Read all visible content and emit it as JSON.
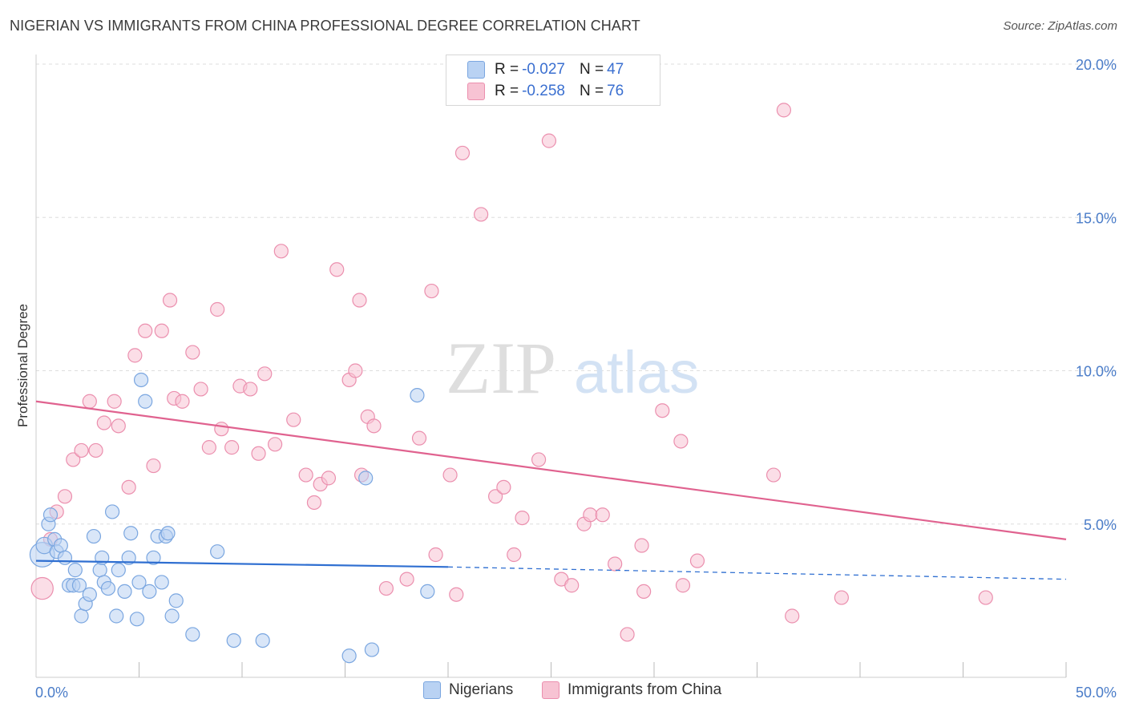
{
  "header": {
    "title": "NIGERIAN VS IMMIGRANTS FROM CHINA PROFESSIONAL DEGREE CORRELATION CHART",
    "source": "Source: ZipAtlas.com"
  },
  "legend": {
    "rows": [
      {
        "r_label": "R = ",
        "r_value": "-0.027",
        "n_label": "N = ",
        "n_value": "47"
      },
      {
        "r_label": "R = ",
        "r_value": "-0.258",
        "n_label": "N = ",
        "n_value": "76"
      }
    ],
    "bottom": [
      "Nigerians",
      "Immigrants from China"
    ]
  },
  "watermark": {
    "zip": "ZIP",
    "atlas": "atlas"
  },
  "colors": {
    "nigerians_fill": "#b9d2f3",
    "nigerians_stroke": "#7aa6e0",
    "nigerians_line": "#2f6fd1",
    "china_fill": "#f7c3d3",
    "china_stroke": "#eb8fae",
    "china_line": "#e0628f",
    "tick": "#4a7cc8",
    "grid": "#dddddd"
  },
  "chart_data": {
    "type": "scatter",
    "title": "NIGERIAN VS IMMIGRANTS FROM CHINA PROFESSIONAL DEGREE CORRELATION CHART",
    "xlabel": "",
    "ylabel": "Professional Degree",
    "xlim": [
      0,
      50
    ],
    "ylim": [
      0,
      20
    ],
    "x_ticks": [
      "0.0%",
      "50.0%"
    ],
    "y_ticks": [
      {
        "value": 5,
        "label": "5.0%"
      },
      {
        "value": 10,
        "label": "10.0%"
      },
      {
        "value": 15,
        "label": "15.0%"
      },
      {
        "value": 20,
        "label": "20.0%"
      }
    ],
    "grid": true,
    "legend_position": "top-center",
    "series": [
      {
        "name": "Nigerians",
        "R": -0.027,
        "N": 47,
        "trend": {
          "x": [
            0,
            20
          ],
          "y": [
            3.8,
            3.6
          ],
          "dashed_to": [
            50,
            3.2
          ]
        },
        "points": [
          [
            0.3,
            4.0,
            18
          ],
          [
            0.4,
            4.3,
            12
          ],
          [
            0.6,
            5.0,
            10
          ],
          [
            0.7,
            5.3,
            10
          ],
          [
            0.9,
            4.5,
            10
          ],
          [
            1.0,
            4.1,
            10
          ],
          [
            1.2,
            4.3,
            10
          ],
          [
            1.4,
            3.9,
            10
          ],
          [
            1.6,
            3.0,
            10
          ],
          [
            1.8,
            3.0,
            10
          ],
          [
            1.9,
            3.5,
            10
          ],
          [
            2.1,
            3.0,
            10
          ],
          [
            2.2,
            2.0,
            10
          ],
          [
            2.4,
            2.4,
            10
          ],
          [
            2.6,
            2.7,
            10
          ],
          [
            2.8,
            4.6,
            10
          ],
          [
            3.1,
            3.5,
            10
          ],
          [
            3.2,
            3.9,
            10
          ],
          [
            3.3,
            3.1,
            10
          ],
          [
            3.5,
            2.9,
            10
          ],
          [
            3.7,
            5.4,
            10
          ],
          [
            3.9,
            2.0,
            10
          ],
          [
            4.0,
            3.5,
            10
          ],
          [
            4.3,
            2.8,
            10
          ],
          [
            4.5,
            3.9,
            10
          ],
          [
            4.6,
            4.7,
            10
          ],
          [
            4.9,
            1.9,
            10
          ],
          [
            5.0,
            3.1,
            10
          ],
          [
            5.1,
            9.7,
            10
          ],
          [
            5.3,
            9.0,
            10
          ],
          [
            5.5,
            2.8,
            10
          ],
          [
            5.7,
            3.9,
            10
          ],
          [
            5.9,
            4.6,
            10
          ],
          [
            6.1,
            3.1,
            10
          ],
          [
            6.3,
            4.6,
            10
          ],
          [
            6.4,
            4.7,
            10
          ],
          [
            6.6,
            2.0,
            10
          ],
          [
            6.8,
            2.5,
            10
          ],
          [
            7.6,
            1.4,
            10
          ],
          [
            8.8,
            4.1,
            10
          ],
          [
            9.6,
            1.2,
            10
          ],
          [
            11.0,
            1.2,
            10
          ],
          [
            15.2,
            0.7,
            10
          ],
          [
            16.0,
            6.5,
            10
          ],
          [
            16.3,
            0.9,
            10
          ],
          [
            18.5,
            9.2,
            10
          ],
          [
            19.0,
            2.8,
            10
          ]
        ]
      },
      {
        "name": "Immigrants from China",
        "R": -0.258,
        "N": 76,
        "trend": {
          "x": [
            0,
            50
          ],
          "y": [
            9.0,
            4.5
          ]
        },
        "points": [
          [
            0.3,
            2.9,
            16
          ],
          [
            0.7,
            4.5,
            10
          ],
          [
            1.0,
            5.4,
            10
          ],
          [
            1.4,
            5.9,
            10
          ],
          [
            1.8,
            7.1,
            10
          ],
          [
            2.2,
            7.4,
            10
          ],
          [
            2.6,
            9.0,
            10
          ],
          [
            2.9,
            7.4,
            10
          ],
          [
            3.3,
            8.3,
            10
          ],
          [
            3.8,
            9.0,
            10
          ],
          [
            4.0,
            8.2,
            10
          ],
          [
            4.5,
            6.2,
            10
          ],
          [
            4.8,
            10.5,
            10
          ],
          [
            5.3,
            11.3,
            10
          ],
          [
            5.7,
            6.9,
            10
          ],
          [
            6.1,
            11.3,
            10
          ],
          [
            6.5,
            12.3,
            10
          ],
          [
            6.7,
            9.1,
            10
          ],
          [
            7.1,
            9.0,
            10
          ],
          [
            7.6,
            10.6,
            10
          ],
          [
            8.0,
            9.4,
            10
          ],
          [
            8.4,
            7.5,
            10
          ],
          [
            8.8,
            12.0,
            10
          ],
          [
            9.0,
            8.1,
            10
          ],
          [
            9.5,
            7.5,
            10
          ],
          [
            9.9,
            9.5,
            10
          ],
          [
            10.4,
            9.4,
            10
          ],
          [
            10.8,
            7.3,
            10
          ],
          [
            11.1,
            9.9,
            10
          ],
          [
            11.6,
            7.6,
            10
          ],
          [
            11.9,
            13.9,
            10
          ],
          [
            12.5,
            8.4,
            10
          ],
          [
            13.1,
            6.6,
            10
          ],
          [
            13.5,
            5.7,
            10
          ],
          [
            13.8,
            6.3,
            10
          ],
          [
            14.2,
            6.5,
            10
          ],
          [
            14.6,
            13.3,
            10
          ],
          [
            15.2,
            9.7,
            10
          ],
          [
            15.5,
            10.0,
            10
          ],
          [
            15.8,
            6.6,
            10
          ],
          [
            15.7,
            12.3,
            10
          ],
          [
            16.1,
            8.5,
            10
          ],
          [
            16.4,
            8.2,
            10
          ],
          [
            17.0,
            2.9,
            10
          ],
          [
            18.0,
            3.2,
            10
          ],
          [
            18.6,
            7.8,
            10
          ],
          [
            19.2,
            12.6,
            10
          ],
          [
            19.4,
            4.0,
            10
          ],
          [
            20.1,
            6.6,
            10
          ],
          [
            20.4,
            2.7,
            10
          ],
          [
            20.7,
            17.1,
            10
          ],
          [
            21.6,
            15.1,
            10
          ],
          [
            22.3,
            5.9,
            10
          ],
          [
            22.7,
            6.2,
            10
          ],
          [
            23.2,
            4.0,
            10
          ],
          [
            23.6,
            5.2,
            10
          ],
          [
            24.4,
            7.1,
            10
          ],
          [
            24.9,
            17.5,
            10
          ],
          [
            25.5,
            3.2,
            10
          ],
          [
            26.0,
            3.0,
            10
          ],
          [
            26.6,
            5.0,
            10
          ],
          [
            26.9,
            5.3,
            10
          ],
          [
            27.5,
            5.3,
            10
          ],
          [
            28.1,
            3.7,
            10
          ],
          [
            28.7,
            1.4,
            10
          ],
          [
            29.4,
            4.3,
            10
          ],
          [
            29.5,
            2.8,
            10
          ],
          [
            30.4,
            8.7,
            10
          ],
          [
            31.3,
            7.7,
            10
          ],
          [
            31.4,
            3.0,
            10
          ],
          [
            32.1,
            3.8,
            10
          ],
          [
            35.8,
            6.6,
            10
          ],
          [
            36.3,
            18.5,
            10
          ],
          [
            36.7,
            2.0,
            10
          ],
          [
            39.1,
            2.6,
            10
          ],
          [
            46.1,
            2.6,
            10
          ]
        ]
      }
    ]
  }
}
